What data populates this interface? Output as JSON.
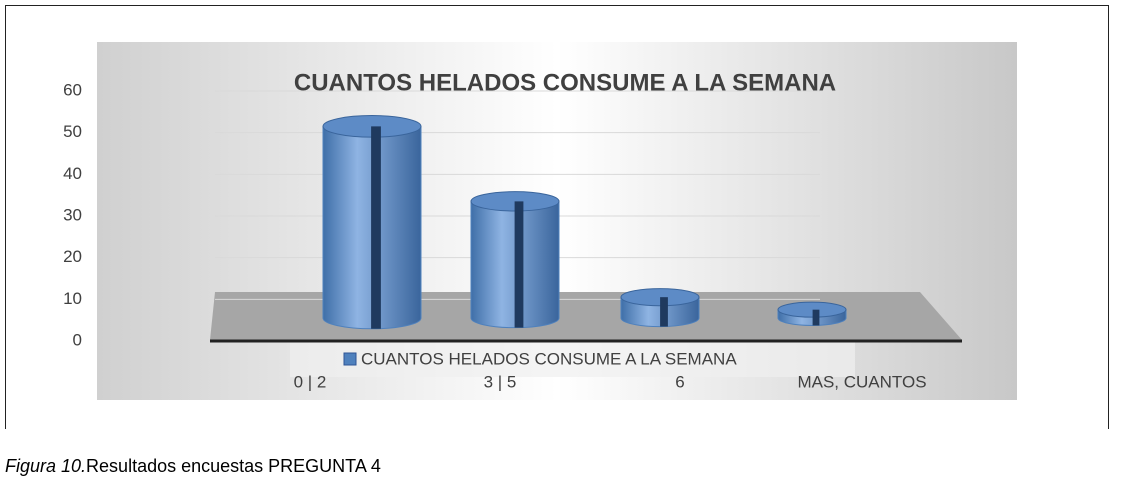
{
  "chart_data": {
    "type": "bar3d-cylinder",
    "title": "CUANTOS HELADOS CONSUME A LA SEMANA",
    "categories": [
      "0 | 2",
      "3 | 5",
      "6",
      "MAS, CUANTOS"
    ],
    "series": [
      {
        "name": "CUANTOS HELADOS CONSUME A LA SEMANA",
        "color": "#4f81bd",
        "values": [
          46,
          28,
          5,
          2
        ]
      }
    ],
    "ylim": [
      0,
      60
    ],
    "yticks": [
      0,
      10,
      20,
      30,
      40,
      50,
      60
    ],
    "grid": true,
    "legend": "bottom"
  },
  "caption": {
    "label": "Figura 10.",
    "text": "Resultados encuestas PREGUNTA 4"
  }
}
